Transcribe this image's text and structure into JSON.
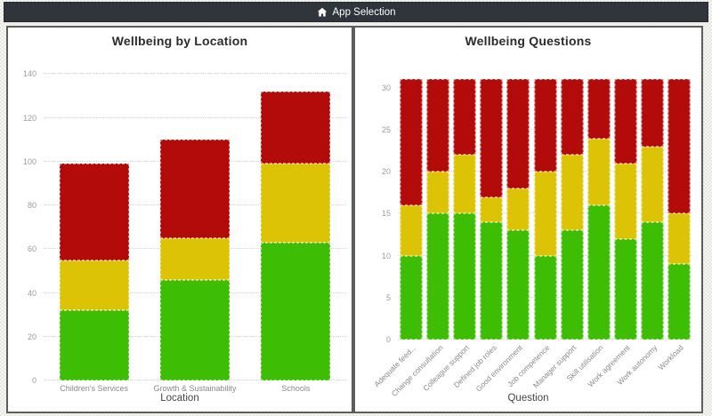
{
  "header": {
    "title": "App Selection"
  },
  "colors": {
    "green": "#3dbd04",
    "yellow": "#ddc305",
    "red": "#b30a0a",
    "navbar_bg": "#2f353b",
    "panel_border": "#5d5d5d",
    "grid": "#d6d6d2",
    "tick_label": "#9b9b98"
  },
  "chart_data": [
    {
      "type": "bar",
      "stacked": true,
      "title": "Wellbeing by Location",
      "xlabel": "Location",
      "ylabel": "",
      "categories": [
        "Children's Services",
        "Growth & Sustainability",
        "Schools"
      ],
      "series": [
        {
          "name": "green",
          "color": "#3dbd04",
          "values": [
            32,
            46,
            63
          ]
        },
        {
          "name": "yellow",
          "color": "#ddc305",
          "values": [
            23,
            19,
            36
          ]
        },
        {
          "name": "red",
          "color": "#b30a0a",
          "values": [
            44,
            45,
            33
          ]
        }
      ],
      "totals": [
        99,
        110,
        132
      ],
      "yticks": [
        0,
        20,
        40,
        60,
        80,
        100,
        120,
        140
      ],
      "ylim": [
        0,
        145
      ],
      "grid": "horizontal-dotted",
      "legend": "none",
      "x_label_rotation": 0
    },
    {
      "type": "bar",
      "stacked": true,
      "title": "Wellbeing Questions",
      "xlabel": "Question",
      "ylabel": "",
      "categories": [
        "Adequate feed...",
        "Change consultation",
        "Colleague support",
        "Defined job roles",
        "Good environment",
        "Job competence",
        "Manager support",
        "Skill utilisation",
        "Work agreement",
        "Work autonomy",
        "Workload"
      ],
      "series": [
        {
          "name": "green",
          "color": "#3dbd04",
          "values": [
            10,
            15,
            15,
            14,
            13,
            10,
            13,
            16,
            12,
            14,
            9
          ]
        },
        {
          "name": "yellow",
          "color": "#ddc305",
          "values": [
            6,
            5,
            7,
            3,
            5,
            10,
            9,
            8,
            9,
            9,
            6
          ]
        },
        {
          "name": "red",
          "color": "#b30a0a",
          "values": [
            15,
            11,
            9,
            14,
            13,
            11,
            9,
            7,
            10,
            8,
            16
          ]
        }
      ],
      "totals": [
        31,
        31,
        31,
        31,
        31,
        31,
        31,
        31,
        31,
        31,
        31
      ],
      "yticks": [
        0,
        5,
        10,
        15,
        20,
        25,
        30
      ],
      "ylim": [
        0,
        32
      ],
      "grid": "horizontal-dotted",
      "legend": "none",
      "x_label_rotation": 45
    }
  ]
}
